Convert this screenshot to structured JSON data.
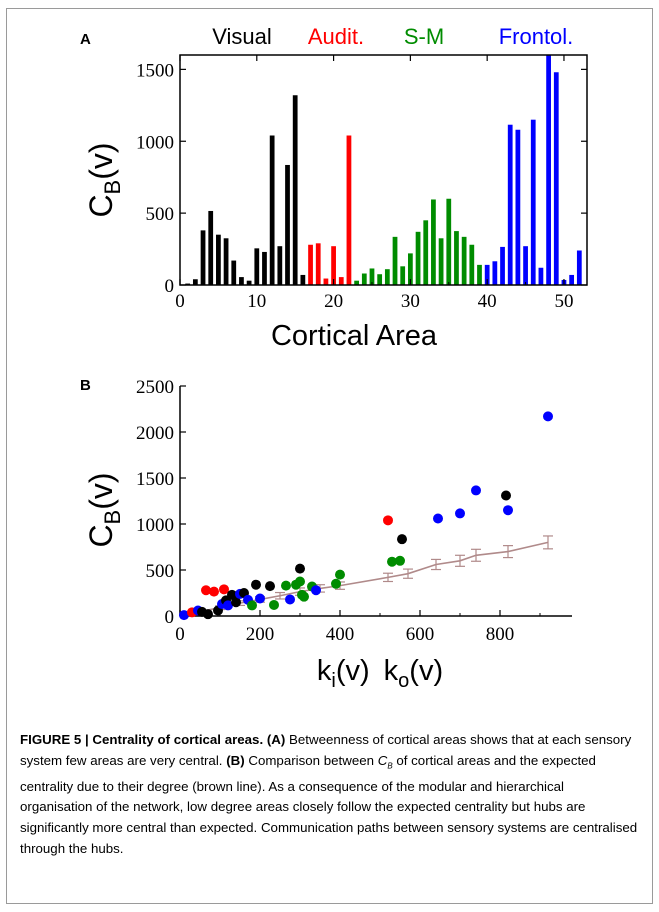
{
  "figure": {
    "caption_title": "FIGURE 5 | Centrality of cortical areas.",
    "caption_a_label": "(A)",
    "caption_a_text": "Betweenness of cortical areas shows that at each sensory system few areas are very central.",
    "caption_b_label": "(B)",
    "caption_b_text_1": "Comparison between",
    "caption_cb_main": "C",
    "caption_cb_sub": "B",
    "caption_b_text_2": "of cortical areas and the expected centrality due to their degree (brown line). As a consequence of the modular and hierarchical organisation of the network, low degree areas closely follow the expected centrality but hubs are significantly more central than expected. Communication paths between sensory systems are centralised through the hubs."
  },
  "colors": {
    "visual": "#000000",
    "auditory": "#ff0000",
    "somatomotor": "#008c00",
    "frontolimbic": "#0000ff",
    "expected": "#b08a8a"
  },
  "chart_data": [
    {
      "type": "bar",
      "panel_label": "A",
      "xlabel": "Cortical Area",
      "ylabel_main": "C",
      "ylabel_sub": "B",
      "ylabel_suffix": "(v)",
      "xlim": [
        0,
        53
      ],
      "ylim": [
        0,
        1600
      ],
      "xticks": [
        0,
        10,
        20,
        30,
        40,
        50
      ],
      "yticks": [
        0,
        500,
        1000,
        1500
      ],
      "groups": [
        {
          "name": "Visual",
          "color": "#000000"
        },
        {
          "name": "Audit.",
          "color": "#ff0000"
        },
        {
          "name": "S-M",
          "color": "#008c00"
        },
        {
          "name": "Frontol.",
          "color": "#0000ff"
        }
      ],
      "bars": [
        {
          "x": 1,
          "value": 10,
          "group": 0
        },
        {
          "x": 2,
          "value": 40,
          "group": 0
        },
        {
          "x": 3,
          "value": 380,
          "group": 0
        },
        {
          "x": 4,
          "value": 515,
          "group": 0
        },
        {
          "x": 5,
          "value": 350,
          "group": 0
        },
        {
          "x": 6,
          "value": 325,
          "group": 0
        },
        {
          "x": 7,
          "value": 170,
          "group": 0
        },
        {
          "x": 8,
          "value": 55,
          "group": 0
        },
        {
          "x": 9,
          "value": 30,
          "group": 0
        },
        {
          "x": 10,
          "value": 255,
          "group": 0
        },
        {
          "x": 11,
          "value": 230,
          "group": 0
        },
        {
          "x": 12,
          "value": 1040,
          "group": 0
        },
        {
          "x": 13,
          "value": 270,
          "group": 0
        },
        {
          "x": 14,
          "value": 835,
          "group": 0
        },
        {
          "x": 15,
          "value": 1320,
          "group": 0
        },
        {
          "x": 16,
          "value": 70,
          "group": 0
        },
        {
          "x": 17,
          "value": 280,
          "group": 1
        },
        {
          "x": 18,
          "value": 290,
          "group": 1
        },
        {
          "x": 19,
          "value": 45,
          "group": 1
        },
        {
          "x": 20,
          "value": 270,
          "group": 1
        },
        {
          "x": 21,
          "value": 55,
          "group": 1
        },
        {
          "x": 22,
          "value": 1040,
          "group": 1
        },
        {
          "x": 23,
          "value": 30,
          "group": 2
        },
        {
          "x": 24,
          "value": 80,
          "group": 2
        },
        {
          "x": 25,
          "value": 115,
          "group": 2
        },
        {
          "x": 26,
          "value": 75,
          "group": 2
        },
        {
          "x": 27,
          "value": 110,
          "group": 2
        },
        {
          "x": 28,
          "value": 335,
          "group": 2
        },
        {
          "x": 29,
          "value": 130,
          "group": 2
        },
        {
          "x": 30,
          "value": 220,
          "group": 2
        },
        {
          "x": 31,
          "value": 370,
          "group": 2
        },
        {
          "x": 32,
          "value": 450,
          "group": 2
        },
        {
          "x": 33,
          "value": 595,
          "group": 2
        },
        {
          "x": 34,
          "value": 325,
          "group": 2
        },
        {
          "x": 35,
          "value": 600,
          "group": 2
        },
        {
          "x": 36,
          "value": 375,
          "group": 2
        },
        {
          "x": 37,
          "value": 335,
          "group": 2
        },
        {
          "x": 38,
          "value": 280,
          "group": 2
        },
        {
          "x": 39,
          "value": 140,
          "group": 2
        },
        {
          "x": 40,
          "value": 140,
          "group": 3
        },
        {
          "x": 41,
          "value": 165,
          "group": 3
        },
        {
          "x": 42,
          "value": 265,
          "group": 3
        },
        {
          "x": 43,
          "value": 1115,
          "group": 3
        },
        {
          "x": 44,
          "value": 1080,
          "group": 3
        },
        {
          "x": 45,
          "value": 270,
          "group": 3
        },
        {
          "x": 46,
          "value": 1150,
          "group": 3
        },
        {
          "x": 47,
          "value": 120,
          "group": 3
        },
        {
          "x": 48,
          "value": 1600,
          "group": 3
        },
        {
          "x": 49,
          "value": 1480,
          "group": 3
        },
        {
          "x": 50,
          "value": 35,
          "group": 3
        },
        {
          "x": 51,
          "value": 70,
          "group": 3
        },
        {
          "x": 52,
          "value": 240,
          "group": 3
        }
      ]
    },
    {
      "type": "scatter",
      "panel_label": "B",
      "xlabel_k": "k",
      "xlabel_i": "i",
      "xlabel_o": "o",
      "xlabel_v": "(v)",
      "ylabel_main": "C",
      "ylabel_sub": "B",
      "ylabel_suffix": "(v)",
      "xlim": [
        0,
        980
      ],
      "ylim": [
        0,
        2500
      ],
      "xticks": [
        0,
        200,
        400,
        600,
        800
      ],
      "yticks": [
        0,
        500,
        1000,
        1500,
        2000,
        2500
      ],
      "points": [
        {
          "x": 10,
          "y": 10,
          "group": 3
        },
        {
          "x": 30,
          "y": 40,
          "group": 1
        },
        {
          "x": 45,
          "y": 60,
          "group": 3
        },
        {
          "x": 55,
          "y": 45,
          "group": 0
        },
        {
          "x": 70,
          "y": 20,
          "group": 0
        },
        {
          "x": 65,
          "y": 280,
          "group": 1
        },
        {
          "x": 85,
          "y": 265,
          "group": 1
        },
        {
          "x": 110,
          "y": 290,
          "group": 1
        },
        {
          "x": 95,
          "y": 60,
          "group": 0
        },
        {
          "x": 105,
          "y": 130,
          "group": 3
        },
        {
          "x": 115,
          "y": 170,
          "group": 0
        },
        {
          "x": 120,
          "y": 115,
          "group": 3
        },
        {
          "x": 130,
          "y": 230,
          "group": 0
        },
        {
          "x": 140,
          "y": 150,
          "group": 0
        },
        {
          "x": 150,
          "y": 240,
          "group": 3
        },
        {
          "x": 160,
          "y": 250,
          "group": 0
        },
        {
          "x": 170,
          "y": 175,
          "group": 3
        },
        {
          "x": 180,
          "y": 115,
          "group": 2
        },
        {
          "x": 190,
          "y": 340,
          "group": 0
        },
        {
          "x": 200,
          "y": 190,
          "group": 3
        },
        {
          "x": 225,
          "y": 325,
          "group": 0
        },
        {
          "x": 235,
          "y": 120,
          "group": 2
        },
        {
          "x": 265,
          "y": 330,
          "group": 2
        },
        {
          "x": 275,
          "y": 180,
          "group": 3
        },
        {
          "x": 290,
          "y": 340,
          "group": 2
        },
        {
          "x": 300,
          "y": 515,
          "group": 0
        },
        {
          "x": 300,
          "y": 375,
          "group": 2
        },
        {
          "x": 305,
          "y": 230,
          "group": 2
        },
        {
          "x": 310,
          "y": 210,
          "group": 2
        },
        {
          "x": 330,
          "y": 320,
          "group": 2
        },
        {
          "x": 340,
          "y": 280,
          "group": 3
        },
        {
          "x": 390,
          "y": 350,
          "group": 2
        },
        {
          "x": 400,
          "y": 450,
          "group": 2
        },
        {
          "x": 520,
          "y": 1040,
          "group": 1
        },
        {
          "x": 530,
          "y": 590,
          "group": 2
        },
        {
          "x": 550,
          "y": 600,
          "group": 2
        },
        {
          "x": 555,
          "y": 835,
          "group": 0
        },
        {
          "x": 645,
          "y": 1060,
          "group": 3
        },
        {
          "x": 700,
          "y": 1115,
          "group": 3
        },
        {
          "x": 740,
          "y": 1365,
          "group": 3
        },
        {
          "x": 815,
          "y": 1310,
          "group": 0
        },
        {
          "x": 820,
          "y": 1150,
          "group": 3
        },
        {
          "x": 920,
          "y": 2170,
          "group": 3
        }
      ],
      "expected_curve": [
        {
          "x": 40,
          "y": 40,
          "err": 15
        },
        {
          "x": 100,
          "y": 90,
          "err": 20
        },
        {
          "x": 150,
          "y": 140,
          "err": 25
        },
        {
          "x": 200,
          "y": 180,
          "err": 30
        },
        {
          "x": 250,
          "y": 220,
          "err": 35
        },
        {
          "x": 300,
          "y": 265,
          "err": 40
        },
        {
          "x": 350,
          "y": 300,
          "err": 40
        },
        {
          "x": 400,
          "y": 330,
          "err": 40
        },
        {
          "x": 520,
          "y": 420,
          "err": 45
        },
        {
          "x": 570,
          "y": 460,
          "err": 50
        },
        {
          "x": 640,
          "y": 560,
          "err": 55
        },
        {
          "x": 700,
          "y": 600,
          "err": 60
        },
        {
          "x": 740,
          "y": 660,
          "err": 65
        },
        {
          "x": 820,
          "y": 700,
          "err": 65
        },
        {
          "x": 920,
          "y": 800,
          "err": 70
        }
      ]
    }
  ]
}
